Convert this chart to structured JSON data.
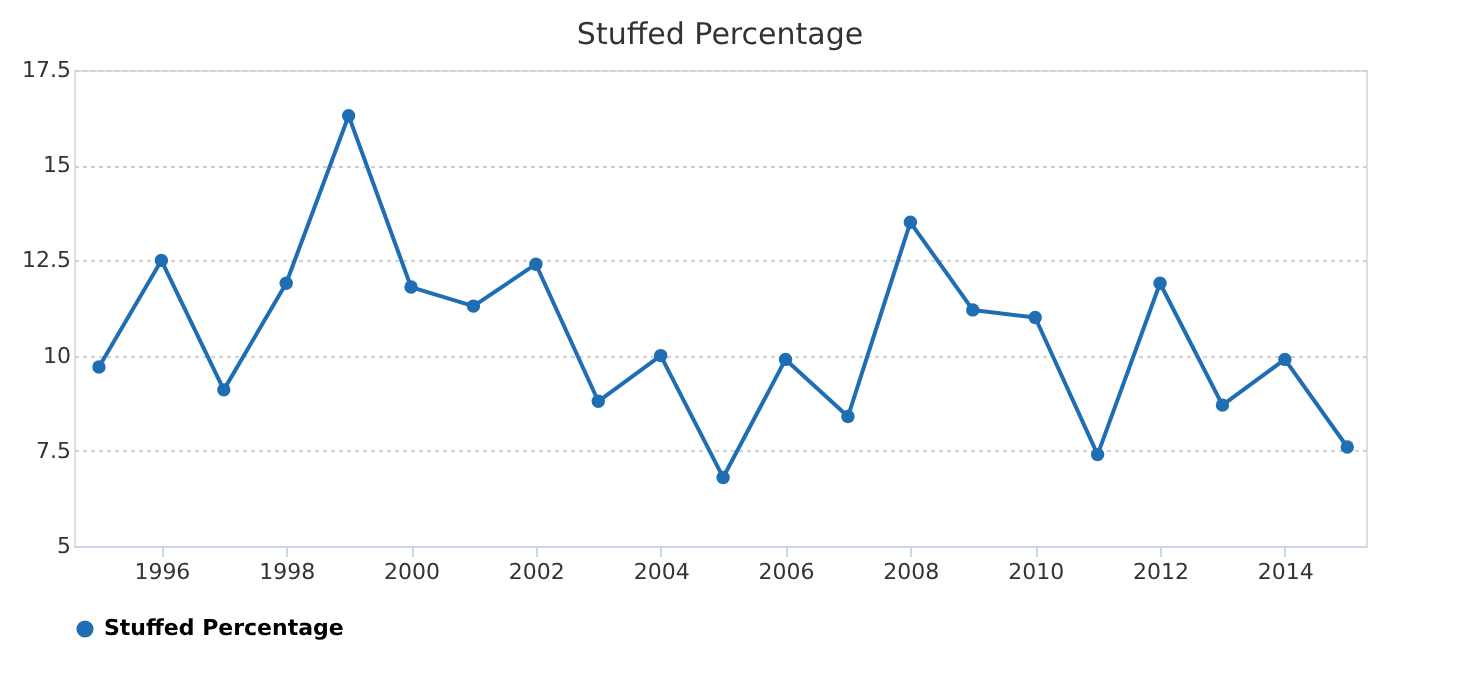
{
  "chart_data": {
    "type": "line",
    "title": "Stuffed Percentage",
    "x": [
      1995,
      1996,
      1997,
      1998,
      1999,
      2000,
      2001,
      2002,
      2003,
      2004,
      2005,
      2006,
      2007,
      2008,
      2009,
      2010,
      2011,
      2012,
      2013,
      2014,
      2015
    ],
    "series": [
      {
        "name": "Stuffed Percentage",
        "color": "#1f6eb4",
        "values": [
          9.7,
          12.5,
          9.1,
          11.9,
          16.3,
          11.8,
          11.3,
          12.4,
          8.8,
          10.0,
          6.8,
          9.9,
          8.4,
          13.5,
          11.2,
          11.0,
          7.4,
          11.9,
          8.7,
          9.9,
          7.6
        ]
      }
    ],
    "xlim": [
      1994.6,
      2015.3
    ],
    "xticks": [
      1996,
      1998,
      2000,
      2002,
      2004,
      2006,
      2008,
      2010,
      2012,
      2014
    ],
    "ylim": [
      5,
      17.5
    ],
    "yticks": [
      5,
      7.5,
      10,
      12.5,
      15,
      17.5
    ],
    "grid": "y",
    "legend": "bottom",
    "marker": "circle",
    "line_style": "solid"
  }
}
